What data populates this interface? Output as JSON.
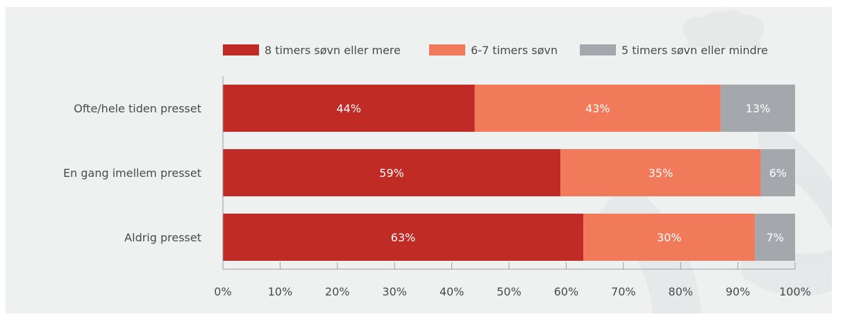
{
  "chart_data": {
    "type": "bar",
    "orientation": "horizontal",
    "stacked": true,
    "categories": [
      "Ofte/hele tiden presset",
      "En gang imellem presset",
      "Aldrig presset"
    ],
    "series": [
      {
        "name": "8 timers søvn eller mere",
        "color": "#c02b26",
        "values": [
          44,
          59,
          63
        ],
        "labels": [
          "44%",
          "59%",
          "63%"
        ]
      },
      {
        "name": "6-7 timers søvn",
        "color": "#f07a5a",
        "values": [
          43,
          35,
          30
        ],
        "labels": [
          "43%",
          "35%",
          "30%"
        ]
      },
      {
        "name": "5 timers søvn eller mindre",
        "color": "#a4a8ac",
        "values": [
          13,
          6,
          7
        ],
        "labels": [
          "13%",
          "6%",
          "7%"
        ]
      }
    ],
    "xlim": [
      0,
      100
    ],
    "xticks": [
      "0%",
      "10%",
      "20%",
      "30%",
      "40%",
      "50%",
      "60%",
      "70%",
      "80%",
      "90%",
      "100%"
    ],
    "grid": false,
    "legend_position": "top"
  }
}
